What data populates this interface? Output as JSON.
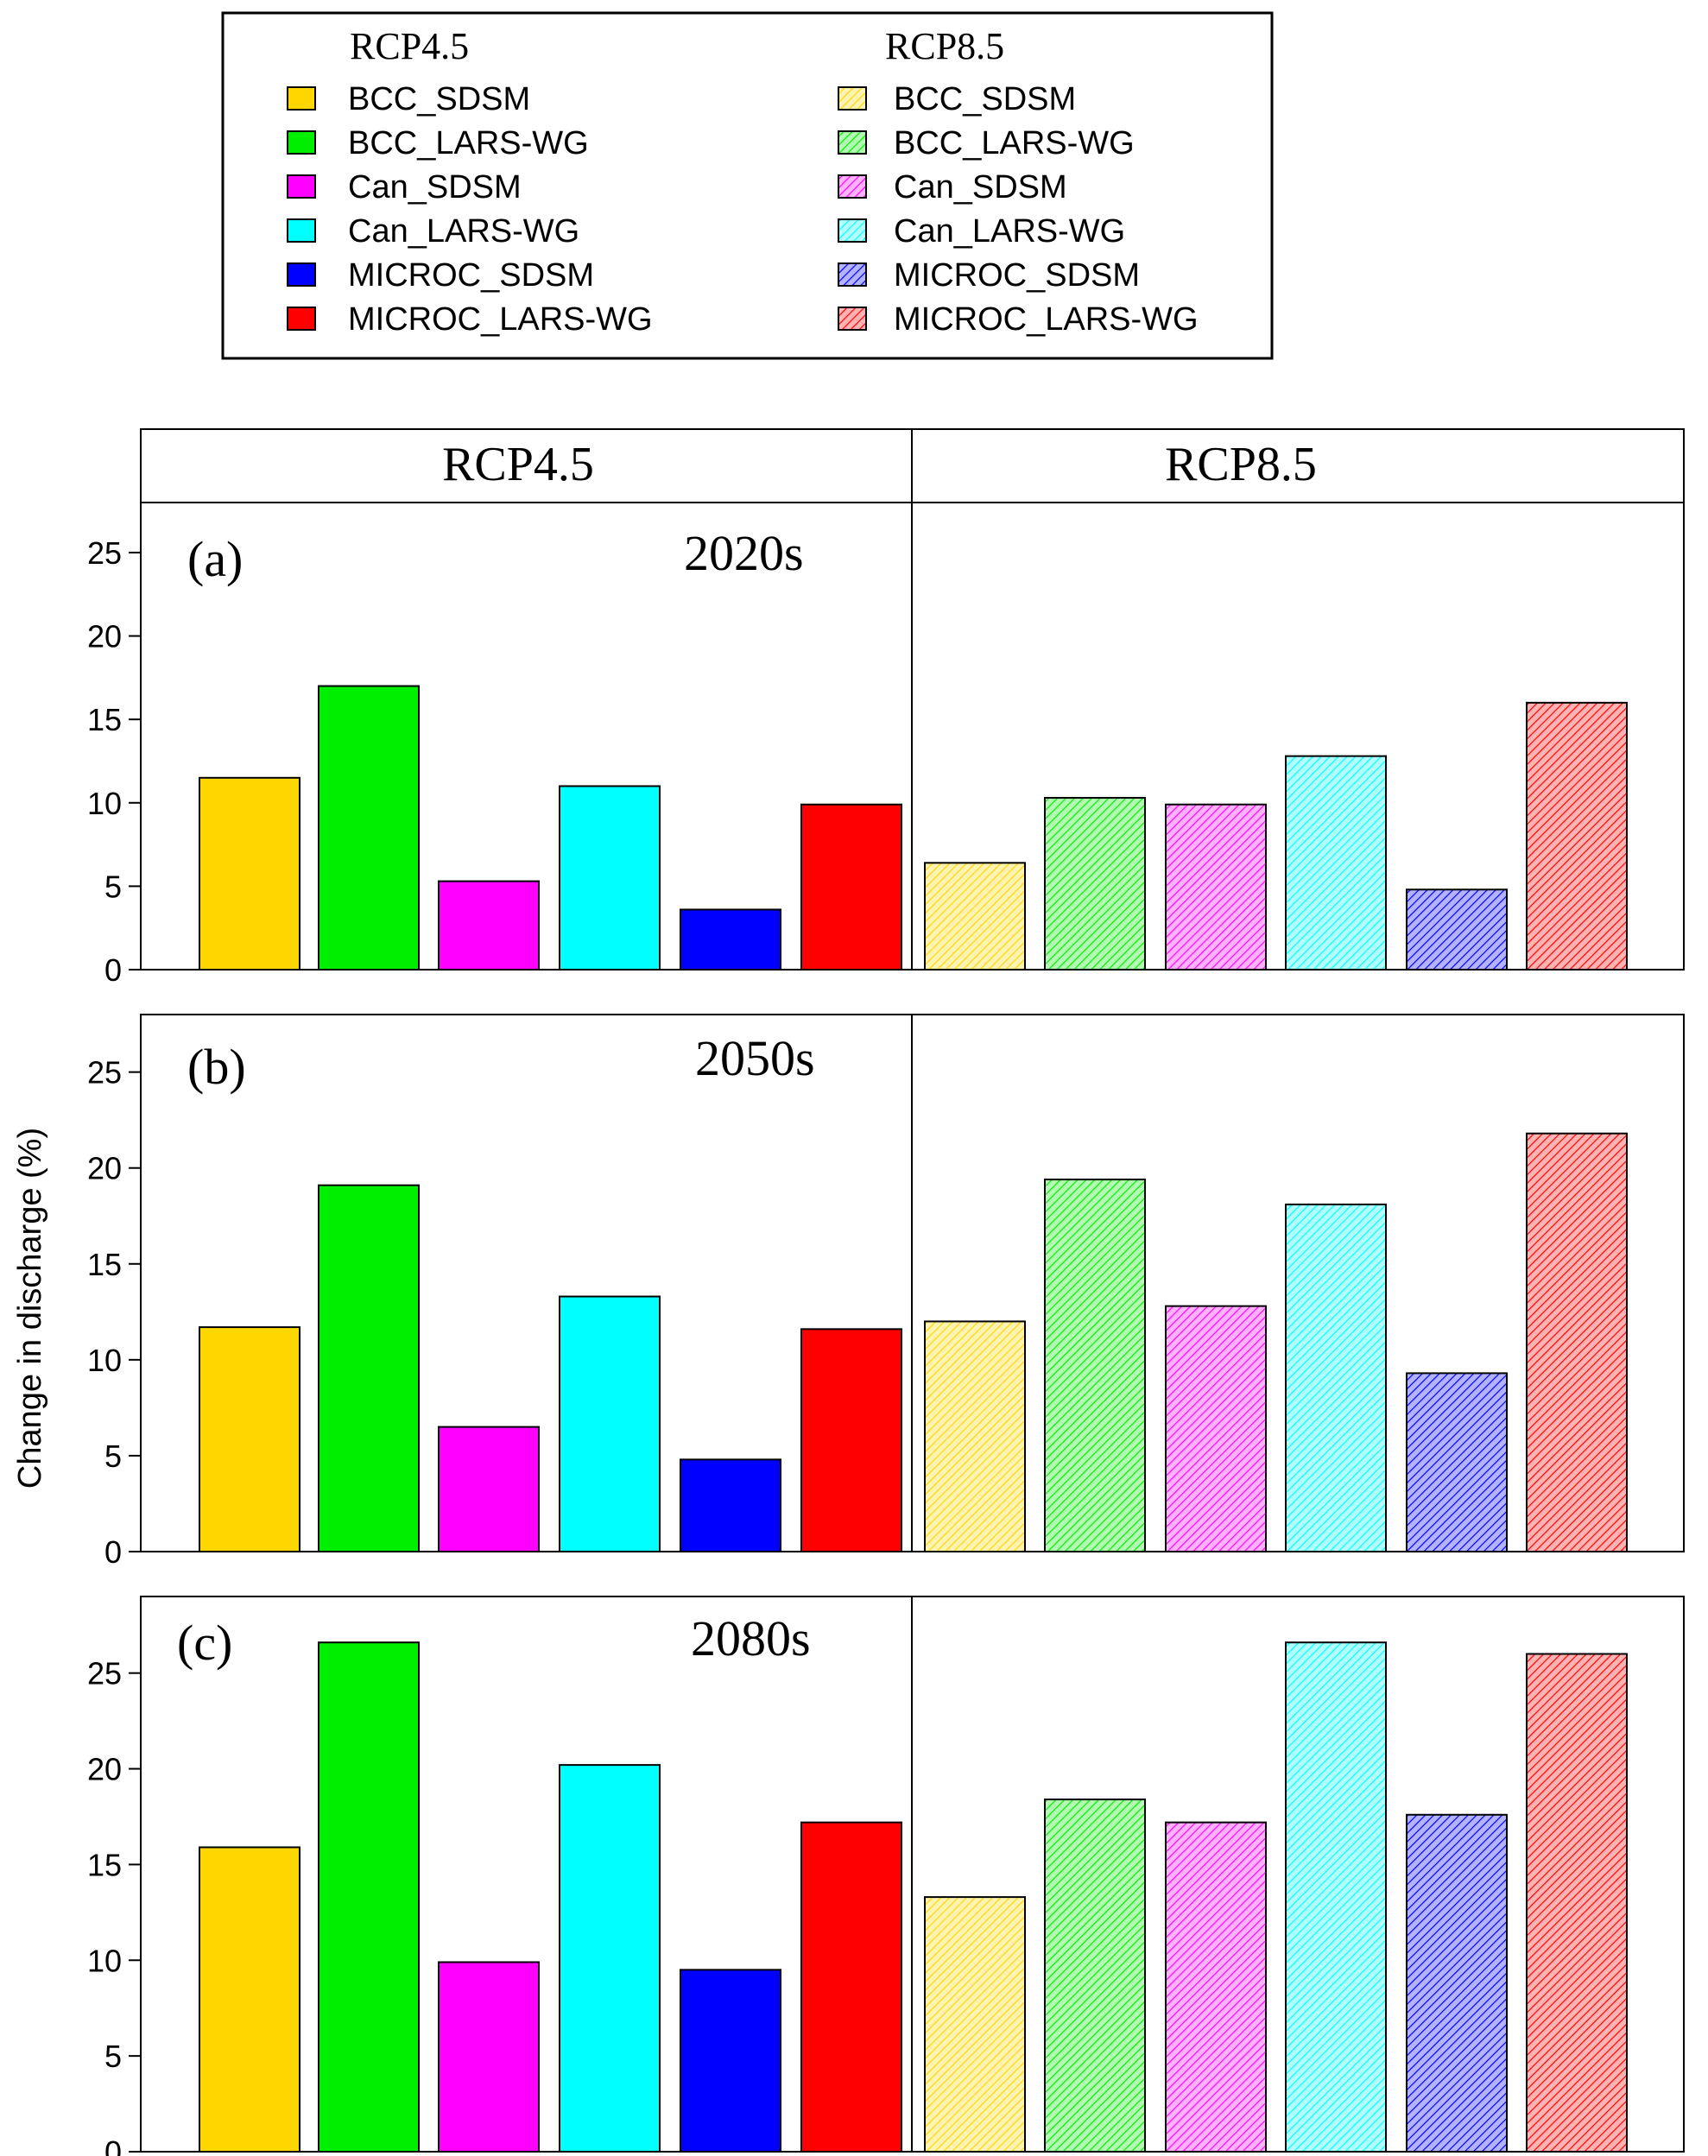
{
  "chart_data": {
    "type": "bar",
    "ylabel": "Change in discharge (%)",
    "scenarios": [
      "RCP4.5",
      "RCP8.5"
    ],
    "models": [
      "BCC_SDSM",
      "BCC_LARS-WG",
      "Can_SDSM",
      "Can_LARS-WG",
      "MICROC_SDSM",
      "MICROC_LARS-WG"
    ],
    "colors": [
      "#FFD700",
      "#00EE00",
      "#FF00FF",
      "#00FFFF",
      "#0000FF",
      "#FF0000"
    ],
    "legend": {
      "col1_title": "RCP4.5",
      "col2_title": "RCP8.5",
      "col1_labels": [
        "BCC_SDSM",
        "BCC_LARS-WG",
        "Can_SDSM",
        "Can_LARS-WG",
        "MICROC_SDSM",
        "MICROC_LARS-WG"
      ],
      "col2_labels": [
        "BCC_SDSM",
        "BCC_LARS-WG",
        "Can_SDSM",
        "Can_LARS-WG",
        "MICROC_SDSM",
        "MICROC_LARS-WG"
      ]
    },
    "panels": [
      {
        "label": "(a)",
        "period": "2020s",
        "ylim": [
          0,
          28
        ],
        "yticks": [
          0,
          5,
          10,
          15,
          20,
          25
        ],
        "rcp45": [
          11.5,
          17.0,
          5.3,
          11.0,
          3.6,
          9.9
        ],
        "rcp85": [
          6.4,
          10.3,
          9.9,
          12.8,
          4.8,
          16.0
        ]
      },
      {
        "label": "(b)",
        "period": "2050s",
        "ylim": [
          0,
          28
        ],
        "yticks": [
          0,
          5,
          10,
          15,
          20,
          25
        ],
        "rcp45": [
          11.7,
          19.1,
          6.5,
          13.3,
          4.8,
          11.6
        ],
        "rcp85": [
          12.0,
          19.4,
          12.8,
          18.1,
          9.3,
          21.8
        ]
      },
      {
        "label": "(c)",
        "period": "2080s",
        "ylim": [
          0,
          29
        ],
        "yticks": [
          0,
          5,
          10,
          15,
          20,
          25
        ],
        "rcp45": [
          15.9,
          26.6,
          9.9,
          20.2,
          9.5,
          17.2
        ],
        "rcp85": [
          13.3,
          18.4,
          17.2,
          26.6,
          17.6,
          26.0
        ]
      }
    ]
  }
}
